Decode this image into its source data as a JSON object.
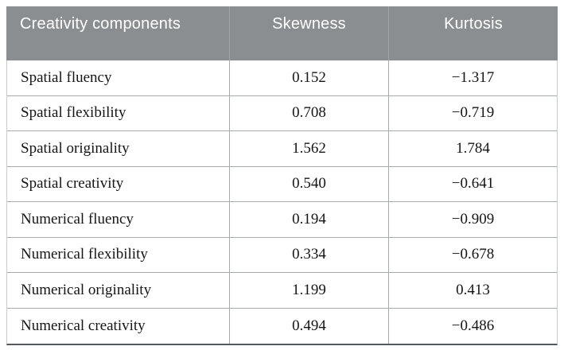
{
  "table": {
    "columns": [
      {
        "label": "Creativity components"
      },
      {
        "label": "Skewness"
      },
      {
        "label": "Kurtosis"
      }
    ],
    "rows": [
      {
        "label": "Spatial fluency",
        "skewness": "0.152",
        "kurtosis": "−1.317"
      },
      {
        "label": "Spatial flexibility",
        "skewness": "0.708",
        "kurtosis": "−0.719"
      },
      {
        "label": "Spatial originality",
        "skewness": "1.562",
        "kurtosis": "1.784"
      },
      {
        "label": "Spatial creativity",
        "skewness": "0.540",
        "kurtosis": "−0.641"
      },
      {
        "label": "Numerical fluency",
        "skewness": "0.194",
        "kurtosis": "−0.909"
      },
      {
        "label": "Numerical flexibility",
        "skewness": "0.334",
        "kurtosis": "−0.678"
      },
      {
        "label": "Numerical originality",
        "skewness": "1.199",
        "kurtosis": "0.413"
      },
      {
        "label": "Numerical creativity",
        "skewness": "0.494",
        "kurtosis": "−0.486"
      }
    ],
    "colors": {
      "header_background": "#8a8e90",
      "header_text": "#ffffff",
      "grid_line": "#a8abac",
      "outer_side_border": "#c9cccb",
      "bottom_border": "#56595b",
      "body_text": "#151515"
    }
  }
}
